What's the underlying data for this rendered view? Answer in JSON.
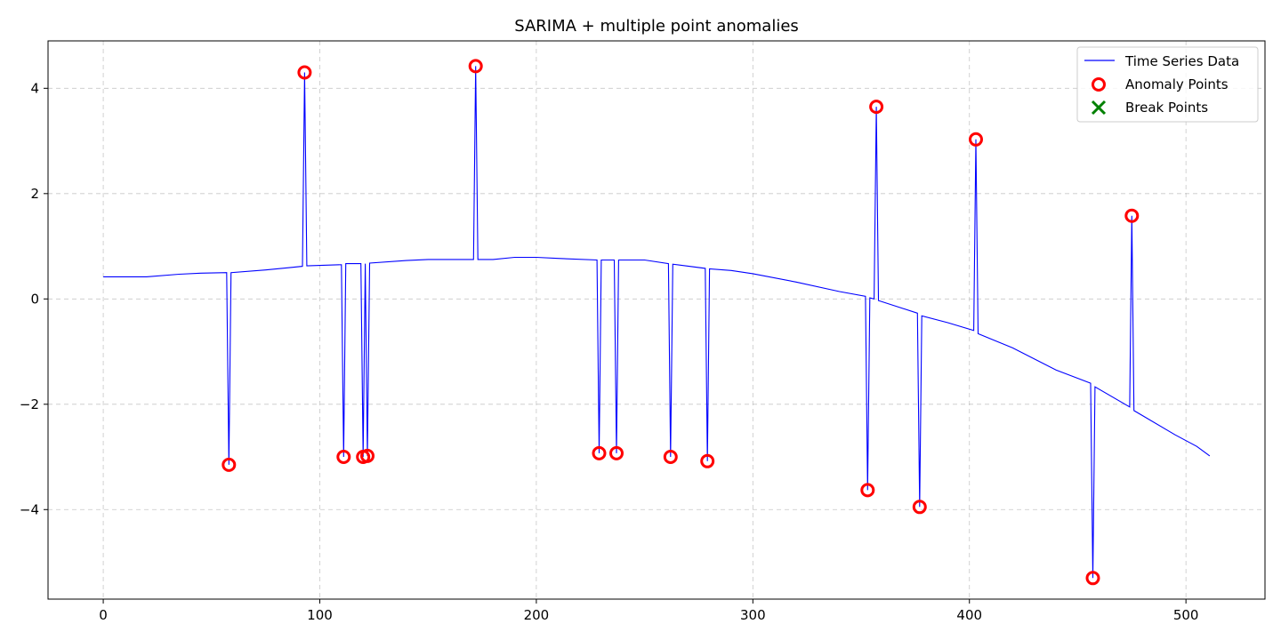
{
  "chart_data": {
    "type": "line",
    "title": "SARIMA + multiple point anomalies",
    "xlabel": "",
    "ylabel": "",
    "xlim": [
      -25.5,
      536.5
    ],
    "ylim": [
      -5.7,
      4.9
    ],
    "xticks": [
      0,
      100,
      200,
      300,
      400,
      500
    ],
    "yticks": [
      -4,
      -2,
      0,
      2,
      4
    ],
    "xtick_labels": [
      "0",
      "100",
      "200",
      "300",
      "400",
      "500"
    ],
    "ytick_labels": [
      "−4",
      "−2",
      "0",
      "2",
      "4"
    ],
    "grid": true,
    "legend_position": "top-right",
    "colors": {
      "line": "#0000ff",
      "anomaly": "#ff0000",
      "break": "#008000"
    },
    "series": [
      {
        "name": "Time Series Data",
        "kind": "line",
        "x": [
          0,
          20,
          35,
          45,
          57,
          58,
          59,
          75,
          85,
          92,
          93,
          94,
          110,
          111,
          112,
          119,
          120,
          121,
          122,
          123,
          140,
          150,
          160,
          171,
          172,
          173,
          180,
          190,
          200,
          210,
          228,
          229,
          230,
          236,
          237,
          238,
          250,
          261,
          262,
          263,
          278,
          279,
          280,
          290,
          300,
          320,
          340,
          352,
          353,
          354,
          356,
          357,
          358,
          376,
          377,
          378,
          390,
          402,
          403,
          404,
          420,
          440,
          456,
          457,
          458,
          474,
          475,
          476,
          495,
          505,
          511
        ],
        "y": [
          0.42,
          0.42,
          0.47,
          0.49,
          0.5,
          -3.15,
          0.5,
          0.55,
          0.59,
          0.62,
          4.3,
          0.63,
          0.65,
          -3.0,
          0.67,
          0.67,
          -3.0,
          0.67,
          -2.98,
          0.68,
          0.73,
          0.75,
          0.75,
          0.75,
          4.42,
          0.75,
          0.75,
          0.79,
          0.79,
          0.77,
          0.74,
          -2.93,
          0.74,
          0.74,
          -2.93,
          0.74,
          0.74,
          0.67,
          -3.0,
          0.66,
          0.58,
          -3.08,
          0.57,
          0.54,
          0.48,
          0.32,
          0.14,
          0.05,
          -3.63,
          0.02,
          0.0,
          3.65,
          -0.03,
          -0.27,
          -3.95,
          -0.32,
          -0.45,
          -0.6,
          3.03,
          -0.66,
          -0.93,
          -1.35,
          -1.6,
          -5.3,
          -1.67,
          -2.05,
          1.58,
          -2.12,
          -2.58,
          -2.8,
          -2.98
        ]
      },
      {
        "name": "Anomaly Points",
        "kind": "scatter",
        "marker": "circle",
        "x": [
          58,
          93,
          111,
          120,
          122,
          172,
          229,
          237,
          262,
          279,
          353,
          357,
          377,
          403,
          457,
          475
        ],
        "y": [
          -3.15,
          4.3,
          -3.0,
          -3.0,
          -2.98,
          4.42,
          -2.93,
          -2.93,
          -3.0,
          -3.08,
          -3.63,
          3.65,
          -3.95,
          3.03,
          -5.3,
          1.58
        ]
      },
      {
        "name": "Break Points",
        "kind": "scatter",
        "marker": "x",
        "x": [],
        "y": []
      }
    ]
  }
}
